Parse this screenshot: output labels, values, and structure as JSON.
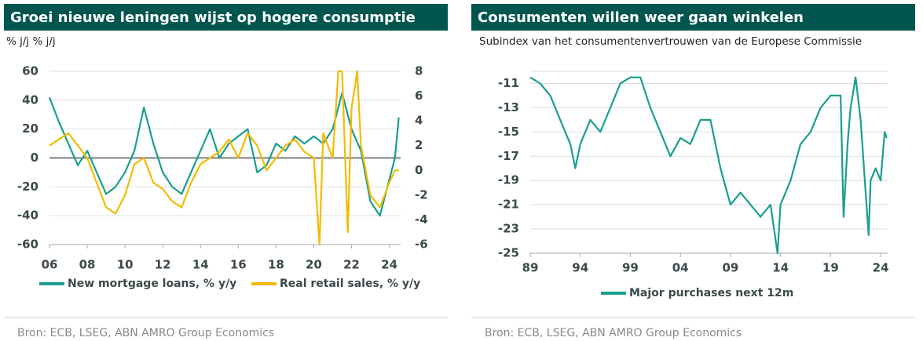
{
  "chart_data": [
    {
      "type": "line",
      "title": "Groei nieuwe leningen wijst op hogere consumptie",
      "subtitle": "% j/j % j/j",
      "source": "Bron: ECB, LSEG, ABN AMRO Group Economics",
      "xlim": [
        2006,
        2024.6
      ],
      "xticks": [
        {
          "value": 2006,
          "label": "06"
        },
        {
          "value": 2008,
          "label": "08"
        },
        {
          "value": 2010,
          "label": "10"
        },
        {
          "value": 2012,
          "label": "12"
        },
        {
          "value": 2014,
          "label": "14"
        },
        {
          "value": 2016,
          "label": "16"
        },
        {
          "value": 2018,
          "label": "18"
        },
        {
          "value": 2020,
          "label": "20"
        },
        {
          "value": 2022,
          "label": "22"
        },
        {
          "value": 2024,
          "label": "24"
        }
      ],
      "ylim": [
        -60,
        60
      ],
      "yticks": [
        -60,
        -40,
        -20,
        0,
        20,
        40,
        60
      ],
      "y2lim": [
        -6,
        8
      ],
      "y2ticks": [
        -6,
        -4,
        -2,
        0,
        2,
        4,
        6,
        8
      ],
      "grid": true,
      "series": [
        {
          "name": "New mortgage loans, % y/y",
          "color": "#1a9e90",
          "x": [
            2006,
            2006.5,
            2007,
            2007.5,
            2008,
            2008.5,
            2009,
            2009.5,
            2010,
            2010.5,
            2011,
            2011.5,
            2012,
            2012.5,
            2013,
            2013.5,
            2014,
            2014.5,
            2015,
            2015.5,
            2016,
            2016.5,
            2017,
            2017.5,
            2018,
            2018.5,
            2019,
            2019.5,
            2020,
            2020.5,
            2021,
            2021.5,
            2022,
            2022.5,
            2023,
            2023.5,
            2024,
            2024.3,
            2024.5
          ],
          "values": [
            42,
            25,
            10,
            -5,
            5,
            -10,
            -25,
            -20,
            -10,
            5,
            35,
            10,
            -10,
            -20,
            -25,
            -10,
            5,
            20,
            0,
            10,
            15,
            20,
            -10,
            -5,
            10,
            5,
            15,
            10,
            15,
            10,
            20,
            45,
            20,
            5,
            -30,
            -40,
            -15,
            0,
            28
          ]
        },
        {
          "name": "Real retail sales, % y/y",
          "color": "#f2bb00",
          "axis": "y2",
          "x": [
            2006,
            2006.5,
            2007,
            2007.5,
            2008,
            2008.5,
            2009,
            2009.5,
            2010,
            2010.5,
            2011,
            2011.5,
            2012,
            2012.5,
            2013,
            2013.5,
            2014,
            2014.5,
            2015,
            2015.5,
            2016,
            2016.5,
            2017,
            2017.5,
            2018,
            2018.5,
            2019,
            2019.5,
            2020,
            2020.3,
            2020.5,
            2021,
            2021.3,
            2021.5,
            2021.8,
            2022,
            2022.3,
            2022.5,
            2023,
            2023.5,
            2024,
            2024.3,
            2024.5
          ],
          "values": [
            2,
            2.5,
            3,
            2,
            1,
            -1,
            -3,
            -3.5,
            -2,
            0.5,
            1,
            -1,
            -1.5,
            -2.5,
            -3,
            -1,
            0.5,
            1,
            1.5,
            2.5,
            1,
            3,
            2,
            0,
            1,
            2,
            2.5,
            1.5,
            1,
            -6,
            3,
            1,
            8,
            8,
            -5,
            5,
            8,
            2,
            -2,
            -3,
            -1,
            0,
            0
          ]
        }
      ]
    },
    {
      "type": "line",
      "title": "Consumenten willen weer gaan winkelen",
      "subtitle": "Subindex van het consumentenvertrouwen van de Europese Commissie",
      "source": "Bron: ECB, LSEG, ABN AMRO Group Economics",
      "xlim": [
        1989,
        2024.7
      ],
      "xticks": [
        {
          "value": 1989,
          "label": "89"
        },
        {
          "value": 1994,
          "label": "94"
        },
        {
          "value": 1999,
          "label": "99"
        },
        {
          "value": 2004,
          "label": "04"
        },
        {
          "value": 2009,
          "label": "09"
        },
        {
          "value": 2014,
          "label": "14"
        },
        {
          "value": 2019,
          "label": "19"
        },
        {
          "value": 2024,
          "label": "24"
        }
      ],
      "ylim": [
        -25,
        -10
      ],
      "yticks": [
        -25,
        -23,
        -21,
        -19,
        -17,
        -15,
        -13,
        -11
      ],
      "grid": true,
      "series": [
        {
          "name": "Major purchases next 12m",
          "color": "#1a9e90",
          "x": [
            1989,
            1990,
            1991,
            1992,
            1993,
            1993.5,
            1994,
            1995,
            1996,
            1997,
            1998,
            1999,
            2000,
            2001,
            2002,
            2003,
            2004,
            2005,
            2006,
            2007,
            2008,
            2009,
            2010,
            2011,
            2012,
            2013,
            2013.7,
            2014,
            2015,
            2016,
            2017,
            2018,
            2019,
            2020,
            2020.3,
            2020.7,
            2021,
            2021.5,
            2022,
            2022.5,
            2022.8,
            2023,
            2023.5,
            2024,
            2024.4,
            2024.6
          ],
          "values": [
            -10.5,
            -11,
            -12,
            -14,
            -16,
            -18,
            -16,
            -14,
            -15,
            -13,
            -11,
            -10.5,
            -10.5,
            -13,
            -15,
            -17,
            -15.5,
            -16,
            -14,
            -14,
            -18,
            -21,
            -20,
            -21,
            -22,
            -21,
            -25,
            -21,
            -19,
            -16,
            -15,
            -13,
            -12,
            -12,
            -22,
            -16,
            -13,
            -10.5,
            -14,
            -20,
            -23.5,
            -19,
            -18,
            -19,
            -15,
            -15.5
          ]
        }
      ]
    }
  ]
}
